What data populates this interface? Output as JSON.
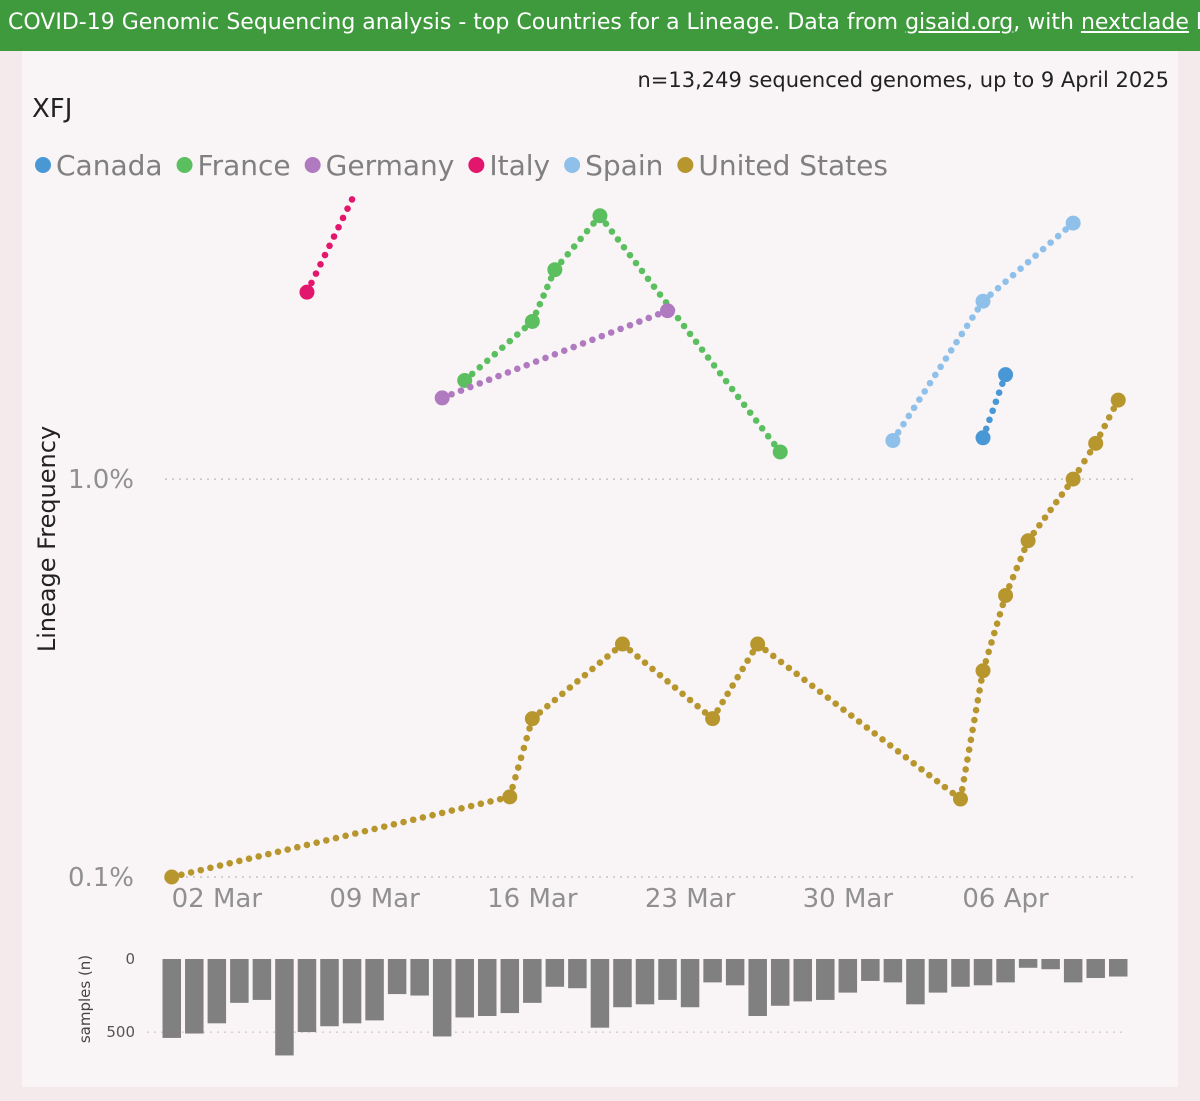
{
  "banner": {
    "prefix": "COVID-19 Genomic Sequencing analysis - top Countries for a Lineage. Data from ",
    "link1": "gisaid.org",
    "middle": ", with ",
    "link2": "nextclade",
    "suffix": " lineages Sc"
  },
  "chart_data": {
    "type": "line",
    "title": "XFJ",
    "subtitle": "n=13,249 sequenced genomes, up to 9 April 2025",
    "ylabel": "Lineage Frequency",
    "yscale": "log",
    "ylim": [
      0.1,
      5.0
    ],
    "yticks": [
      {
        "value": 0.1,
        "label": "0.1%"
      },
      {
        "value": 1.0,
        "label": "1.0%"
      }
    ],
    "x_unit": "days since 28 Feb 2025",
    "xlim": [
      -0.3,
      42.3
    ],
    "xticks": [
      {
        "value": 2,
        "label": "02 Mar"
      },
      {
        "value": 9,
        "label": "09 Mar"
      },
      {
        "value": 16,
        "label": "16 Mar"
      },
      {
        "value": 23,
        "label": "23 Mar"
      },
      {
        "value": 30,
        "label": "30 Mar"
      },
      {
        "value": 37,
        "label": "06 Apr"
      }
    ],
    "series": [
      {
        "name": "Canada",
        "color": "#4a97d6",
        "points": [
          [
            36,
            1.27
          ],
          [
            37,
            1.83
          ]
        ]
      },
      {
        "name": "France",
        "color": "#5cbf5f",
        "points": [
          [
            13,
            1.77
          ],
          [
            16,
            2.49
          ],
          [
            17,
            3.36
          ],
          [
            19,
            4.59
          ],
          [
            27,
            1.17
          ]
        ]
      },
      {
        "name": "Germany",
        "color": "#b07ac0",
        "points": [
          [
            12,
            1.6
          ],
          [
            22,
            2.65
          ]
        ]
      },
      {
        "name": "Italy",
        "color": "#e3166e",
        "points": [
          [
            6,
            2.95
          ],
          [
            9,
            6.6
          ]
        ]
      },
      {
        "name": "Spain",
        "color": "#8ec0ea",
        "points": [
          [
            32,
            1.25
          ],
          [
            36,
            2.8
          ],
          [
            40,
            4.4
          ]
        ]
      },
      {
        "name": "United States",
        "color": "#b8962e",
        "points": [
          [
            0,
            0.1
          ],
          [
            15,
            0.159
          ],
          [
            16,
            0.25
          ],
          [
            20,
            0.385
          ],
          [
            24,
            0.25
          ],
          [
            26,
            0.385
          ],
          [
            35,
            0.157
          ],
          [
            36,
            0.33
          ],
          [
            37,
            0.51
          ],
          [
            38,
            0.7
          ],
          [
            40,
            1.0
          ],
          [
            41,
            1.23
          ],
          [
            42,
            1.58
          ]
        ]
      }
    ],
    "samples": {
      "label": "samples (n)",
      "ylim": [
        0,
        650
      ],
      "yticks": [
        {
          "value": 0,
          "label": "0"
        },
        {
          "value": 500,
          "label": "500"
        }
      ],
      "values": [
        540,
        510,
        440,
        300,
        280,
        660,
        500,
        460,
        440,
        420,
        240,
        250,
        530,
        400,
        390,
        370,
        300,
        190,
        200,
        470,
        330,
        310,
        280,
        330,
        160,
        180,
        390,
        320,
        290,
        280,
        230,
        150,
        160,
        310,
        230,
        190,
        180,
        160,
        60,
        70,
        160,
        130,
        120
      ]
    }
  }
}
